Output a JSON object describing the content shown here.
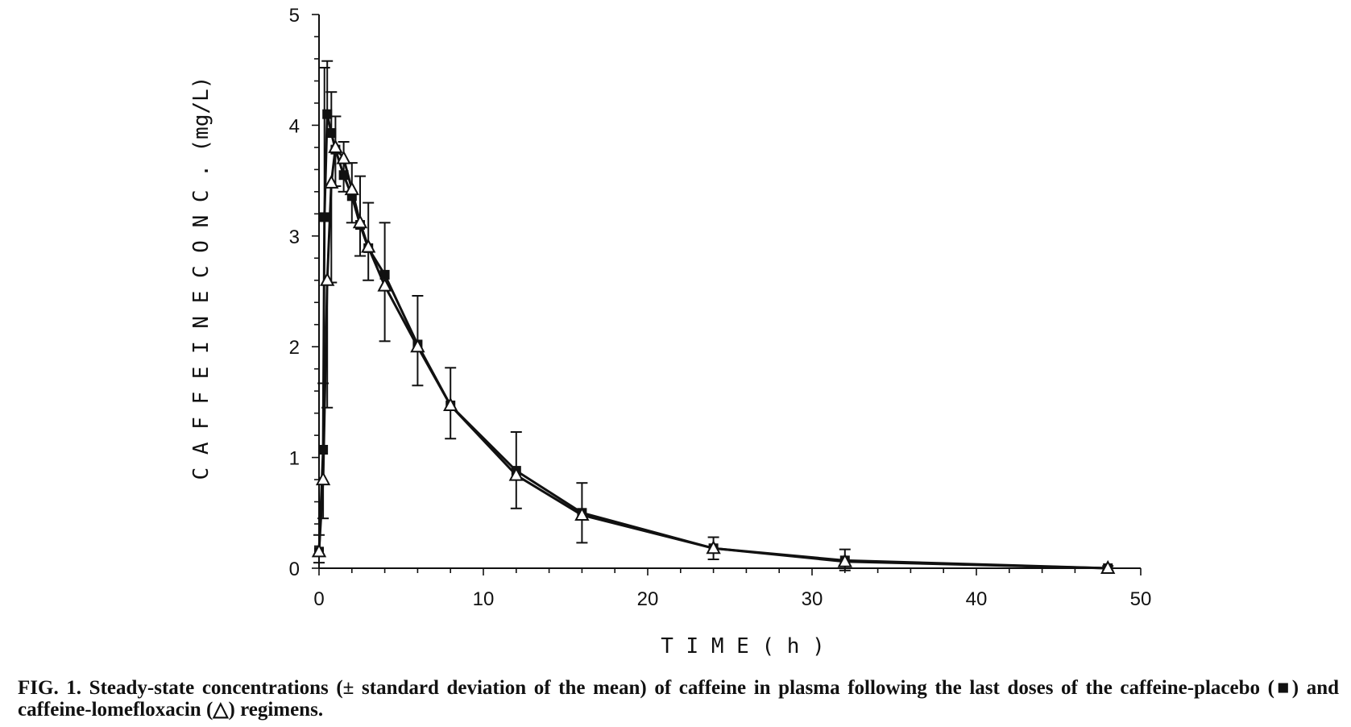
{
  "chart_data": {
    "type": "line",
    "title": "",
    "xlabel": "T I M E ( h )",
    "ylabel": "C A F F E I N E C O N C . (mg/L)",
    "xlim": [
      0,
      50
    ],
    "ylim": [
      0,
      5
    ],
    "xticks": [
      "0",
      "10",
      "20",
      "30",
      "40",
      "50"
    ],
    "yticks": [
      "0",
      "1",
      "2",
      "3",
      "4",
      "5"
    ],
    "grid": false,
    "series": [
      {
        "marker": "filled-square",
        "x": [
          0,
          0.25,
          0.33,
          0.5,
          0.75,
          1,
          1.5,
          2,
          2.5,
          3,
          4,
          6,
          8,
          12,
          16,
          24,
          32,
          48
        ],
        "y": [
          0.15,
          1.07,
          3.17,
          4.1,
          3.93,
          3.78,
          3.55,
          3.36,
          3.1,
          2.89,
          2.65,
          2.02,
          1.47,
          0.88,
          0.5,
          0.18,
          0.07,
          0.0
        ],
        "err": [
          0.15,
          0.6,
          1.35,
          0.48,
          0.37,
          0.3,
          0.3,
          0.3,
          0.44,
          0.41,
          0.47,
          0.44,
          0.34,
          0.35,
          0.27,
          0.1,
          0.1,
          0.02
        ]
      },
      {
        "marker": "open-triangle",
        "x": [
          0,
          0.25,
          0.5,
          0.75,
          1,
          1.5,
          2,
          2.5,
          3,
          4,
          6,
          8,
          12,
          16,
          24,
          32,
          48
        ],
        "y": [
          0.15,
          0.8,
          2.6,
          3.48,
          3.8,
          3.7,
          3.42,
          3.12,
          2.9,
          2.55,
          2.0,
          1.47,
          0.84,
          0.48,
          0.18,
          0.06,
          0.0
        ],
        "err": [
          0.1,
          0.35,
          1.15,
          0.9,
          0.35,
          0.3,
          0.3,
          0.3,
          0.3,
          0.5,
          0.35,
          0.3,
          0.3,
          0.25,
          0.1,
          0.08,
          0.02
        ]
      }
    ]
  },
  "caption": "FIG. 1. Steady-state concentrations (± standard deviation of the mean) of caffeine in plasma following the last doses of the caffeine-placebo (■) and caffeine-lomefloxacin (△) regimens."
}
